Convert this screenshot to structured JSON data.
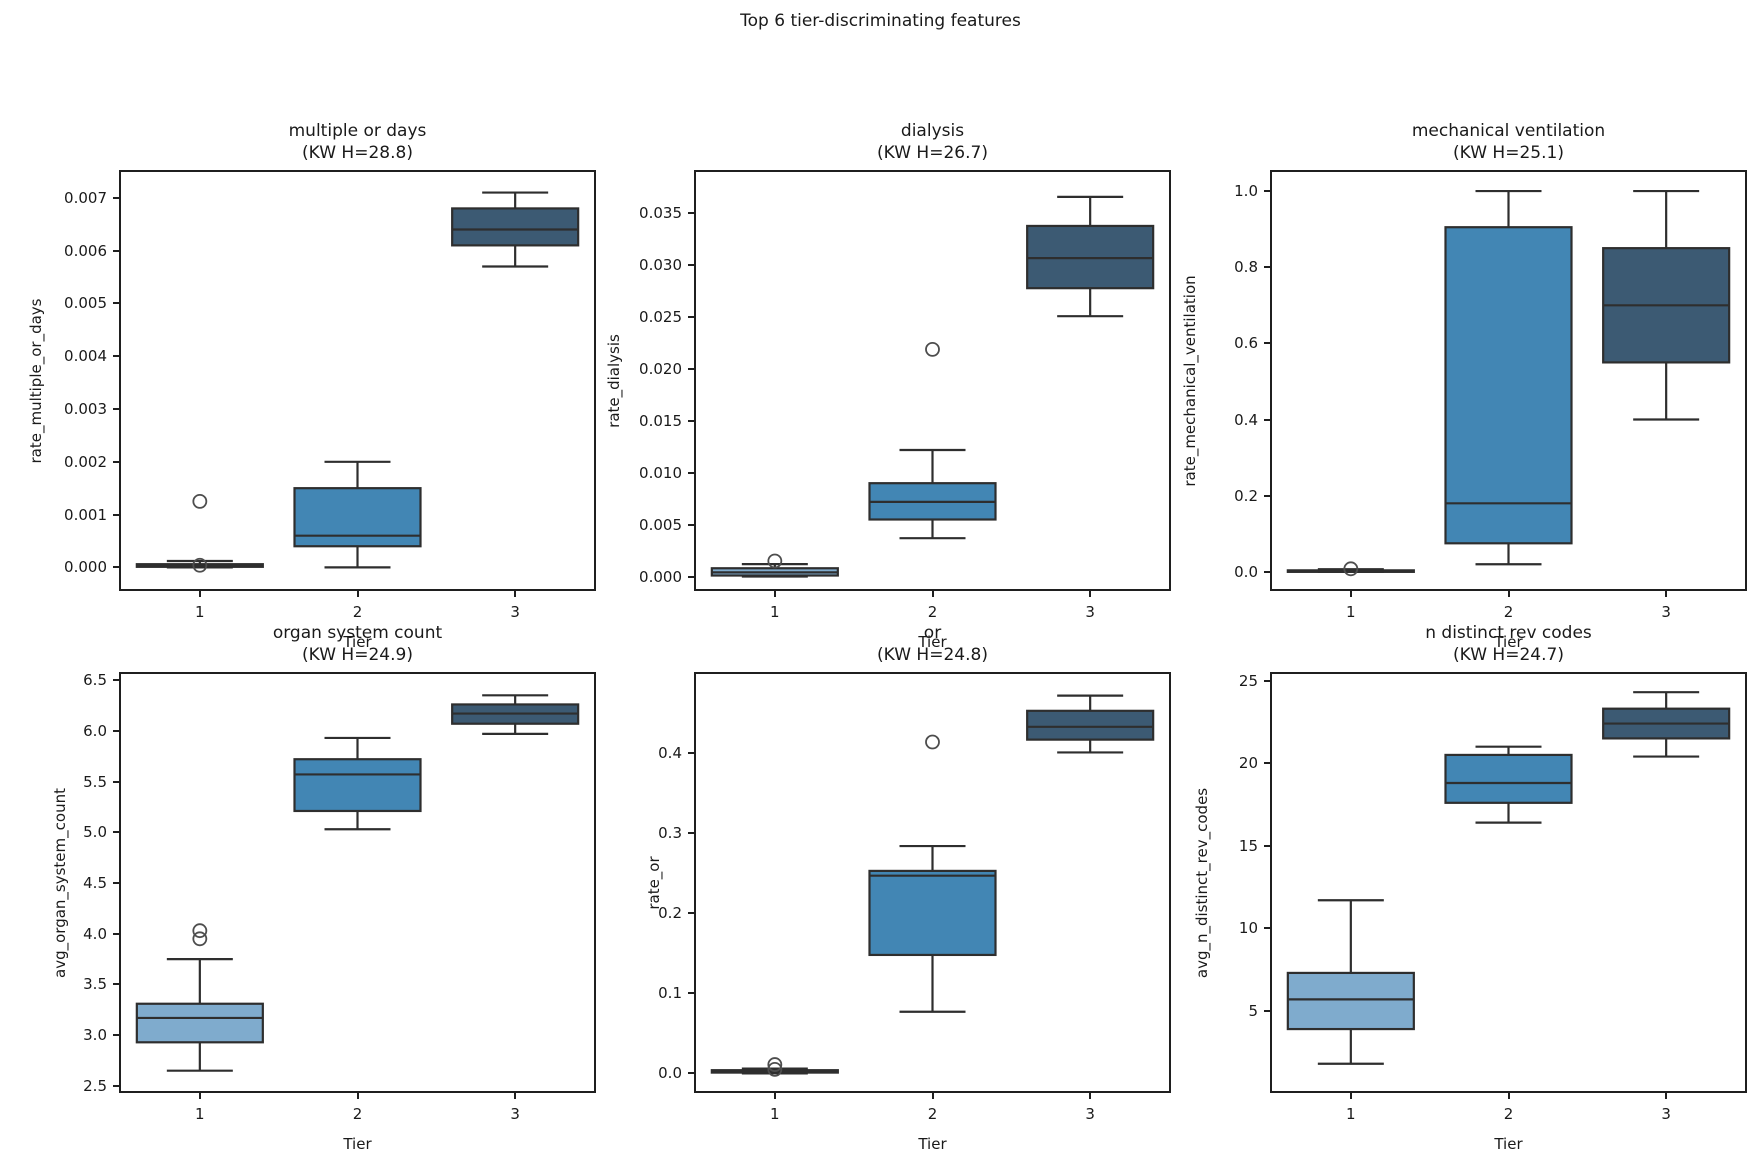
{
  "figure": {
    "suptitle": "Top 6 tier-discriminating features",
    "background": "#ffffff",
    "text_color": "#1a1a1a",
    "spine_color": "#1f1f1f",
    "edge_color": "#2e2e2e",
    "flier_color": "#4d4d4d",
    "tier_colors": [
      "#7fabcd",
      "#4286b4",
      "#3c5a73"
    ]
  },
  "chart_data": [
    {
      "type": "box",
      "title": "multiple or days",
      "subtitle": "(KW H=28.8)",
      "ylabel": "rate_multiple_or_days",
      "xlabel": "Tier",
      "categories": [
        "1",
        "2",
        "3"
      ],
      "ylim": [
        -0.00041,
        0.00749
      ],
      "yticks": [
        {
          "v": 0.0,
          "label": "0.000"
        },
        {
          "v": 0.001,
          "label": "0.001"
        },
        {
          "v": 0.002,
          "label": "0.002"
        },
        {
          "v": 0.003,
          "label": "0.003"
        },
        {
          "v": 0.004,
          "label": "0.004"
        },
        {
          "v": 0.005,
          "label": "0.005"
        },
        {
          "v": 0.006,
          "label": "0.006"
        },
        {
          "v": 0.007,
          "label": "0.007"
        }
      ],
      "boxes": [
        {
          "tier": "1",
          "whislo": 0.0,
          "q1": 1e-05,
          "med": 3e-05,
          "q3": 6e-05,
          "whishi": 0.00012,
          "fliers": [
            0.00125,
            4e-05
          ]
        },
        {
          "tier": "2",
          "whislo": 0.0,
          "q1": 0.0004,
          "med": 0.0006,
          "q3": 0.0015,
          "whishi": 0.002,
          "fliers": []
        },
        {
          "tier": "3",
          "whislo": 0.0057,
          "q1": 0.0061,
          "med": 0.0064,
          "q3": 0.0068,
          "whishi": 0.0071,
          "fliers": []
        }
      ]
    },
    {
      "type": "box",
      "title": "dialysis",
      "subtitle": "(KW H=26.7)",
      "ylabel": "rate_dialysis",
      "xlabel": "Tier",
      "categories": [
        "1",
        "2",
        "3"
      ],
      "ylim": [
        -0.0012,
        0.039
      ],
      "yticks": [
        {
          "v": 0.0,
          "label": "0.000"
        },
        {
          "v": 0.005,
          "label": "0.005"
        },
        {
          "v": 0.01,
          "label": "0.010"
        },
        {
          "v": 0.015,
          "label": "0.015"
        },
        {
          "v": 0.02,
          "label": "0.020"
        },
        {
          "v": 0.025,
          "label": "0.025"
        },
        {
          "v": 0.03,
          "label": "0.030"
        },
        {
          "v": 0.035,
          "label": "0.035"
        }
      ],
      "boxes": [
        {
          "tier": "1",
          "whislo": 0.0,
          "q1": 0.0001,
          "med": 0.0004,
          "q3": 0.0008,
          "whishi": 0.0012,
          "fliers": [
            0.0015
          ]
        },
        {
          "tier": "2",
          "whislo": 0.0037,
          "q1": 0.0055,
          "med": 0.0072,
          "q3": 0.009,
          "whishi": 0.0122,
          "fliers": [
            0.0219
          ]
        },
        {
          "tier": "3",
          "whislo": 0.0251,
          "q1": 0.0278,
          "med": 0.0307,
          "q3": 0.0338,
          "whishi": 0.0366,
          "fliers": []
        }
      ]
    },
    {
      "type": "box",
      "title": "mechanical ventilation",
      "subtitle": "(KW H=25.1)",
      "ylabel": "rate_mechanical_ventilation",
      "xlabel": "Tier",
      "categories": [
        "1",
        "2",
        "3"
      ],
      "ylim": [
        -0.045,
        1.05
      ],
      "yticks": [
        {
          "v": 0.0,
          "label": "0.0"
        },
        {
          "v": 0.2,
          "label": "0.2"
        },
        {
          "v": 0.4,
          "label": "0.4"
        },
        {
          "v": 0.6,
          "label": "0.6"
        },
        {
          "v": 0.8,
          "label": "0.8"
        },
        {
          "v": 1.0,
          "label": "1.0"
        }
      ],
      "boxes": [
        {
          "tier": "1",
          "whislo": 0.0,
          "q1": 0.0,
          "med": 0.002,
          "q3": 0.004,
          "whishi": 0.007,
          "fliers": [
            0.008
          ]
        },
        {
          "tier": "2",
          "whislo": 0.02,
          "q1": 0.075,
          "med": 0.18,
          "q3": 0.905,
          "whishi": 1.0,
          "fliers": []
        },
        {
          "tier": "3",
          "whislo": 0.4,
          "q1": 0.55,
          "med": 0.7,
          "q3": 0.85,
          "whishi": 1.0,
          "fliers": []
        }
      ]
    },
    {
      "type": "box",
      "title": "organ system count",
      "subtitle": "(KW H=24.9)",
      "ylabel": "avg_organ_system_count",
      "xlabel": "Tier",
      "categories": [
        "1",
        "2",
        "3"
      ],
      "ylim": [
        2.45,
        6.56
      ],
      "yticks": [
        {
          "v": 2.5,
          "label": "2.5"
        },
        {
          "v": 3.0,
          "label": "3.0"
        },
        {
          "v": 3.5,
          "label": "3.5"
        },
        {
          "v": 4.0,
          "label": "4.0"
        },
        {
          "v": 4.5,
          "label": "4.5"
        },
        {
          "v": 5.0,
          "label": "5.0"
        },
        {
          "v": 5.5,
          "label": "5.5"
        },
        {
          "v": 6.0,
          "label": "6.0"
        },
        {
          "v": 6.5,
          "label": "6.5"
        }
      ],
      "boxes": [
        {
          "tier": "1",
          "whislo": 2.65,
          "q1": 2.93,
          "med": 3.17,
          "q3": 3.31,
          "whishi": 3.75,
          "fliers": [
            3.95,
            4.03
          ]
        },
        {
          "tier": "2",
          "whislo": 5.03,
          "q1": 5.21,
          "med": 5.57,
          "q3": 5.72,
          "whishi": 5.93,
          "fliers": []
        },
        {
          "tier": "3",
          "whislo": 5.97,
          "q1": 6.07,
          "med": 6.17,
          "q3": 6.26,
          "whishi": 6.35,
          "fliers": []
        }
      ]
    },
    {
      "type": "box",
      "title": "or",
      "subtitle": "(KW H=24.8)",
      "ylabel": "rate_or",
      "xlabel": "Tier",
      "categories": [
        "1",
        "2",
        "3"
      ],
      "ylim": [
        -0.022,
        0.499
      ],
      "yticks": [
        {
          "v": 0.0,
          "label": "0.0"
        },
        {
          "v": 0.1,
          "label": "0.1"
        },
        {
          "v": 0.2,
          "label": "0.2"
        },
        {
          "v": 0.3,
          "label": "0.3"
        },
        {
          "v": 0.4,
          "label": "0.4"
        }
      ],
      "boxes": [
        {
          "tier": "1",
          "whislo": 0.0,
          "q1": 0.001,
          "med": 0.002,
          "q3": 0.004,
          "whishi": 0.006,
          "fliers": [
            0.005,
            0.011
          ]
        },
        {
          "tier": "2",
          "whislo": 0.077,
          "q1": 0.148,
          "med": 0.247,
          "q3": 0.253,
          "whishi": 0.284,
          "fliers": [
            0.414
          ]
        },
        {
          "tier": "3",
          "whislo": 0.401,
          "q1": 0.417,
          "med": 0.433,
          "q3": 0.453,
          "whishi": 0.472,
          "fliers": []
        }
      ]
    },
    {
      "type": "box",
      "title": "n distinct rev codes",
      "subtitle": "(KW H=24.7)",
      "ylabel": "avg_n_distinct_rev_codes",
      "xlabel": "Tier",
      "categories": [
        "1",
        "2",
        "3"
      ],
      "ylim": [
        0.15,
        25.4
      ],
      "yticks": [
        {
          "v": 5,
          "label": "5"
        },
        {
          "v": 10,
          "label": "10"
        },
        {
          "v": 15,
          "label": "15"
        },
        {
          "v": 20,
          "label": "20"
        },
        {
          "v": 25,
          "label": "25"
        }
      ],
      "boxes": [
        {
          "tier": "1",
          "whislo": 1.8,
          "q1": 3.9,
          "med": 5.7,
          "q3": 7.3,
          "whishi": 11.7,
          "fliers": []
        },
        {
          "tier": "2",
          "whislo": 16.4,
          "q1": 17.6,
          "med": 18.8,
          "q3": 20.5,
          "whishi": 21.0,
          "fliers": []
        },
        {
          "tier": "3",
          "whislo": 20.4,
          "q1": 21.5,
          "med": 22.4,
          "q3": 23.3,
          "whishi": 24.3,
          "fliers": []
        }
      ]
    }
  ]
}
